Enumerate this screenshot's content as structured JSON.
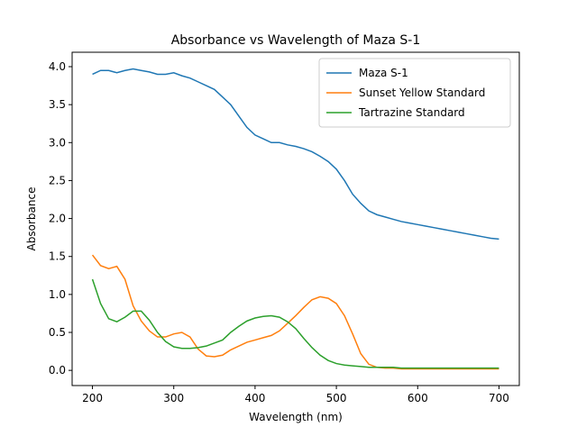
{
  "chart_data": {
    "type": "line",
    "title": "Absorbance vs Wavelength of Maza S-1",
    "xlabel": "Wavelength (nm)",
    "ylabel": "Absorbance",
    "x": [
      200,
      210,
      220,
      230,
      240,
      250,
      260,
      270,
      280,
      290,
      300,
      310,
      320,
      330,
      340,
      350,
      360,
      370,
      380,
      390,
      400,
      410,
      420,
      430,
      440,
      450,
      460,
      470,
      480,
      490,
      500,
      510,
      520,
      530,
      540,
      550,
      560,
      570,
      580,
      590,
      600,
      610,
      620,
      630,
      640,
      650,
      660,
      670,
      680,
      690,
      700
    ],
    "series": [
      {
        "name": "Maza S-1",
        "color": "#1f77b4",
        "values": [
          3.9,
          3.95,
          3.95,
          3.92,
          3.95,
          3.97,
          3.95,
          3.93,
          3.9,
          3.9,
          3.92,
          3.88,
          3.85,
          3.8,
          3.75,
          3.7,
          3.6,
          3.5,
          3.35,
          3.2,
          3.1,
          3.05,
          3.0,
          3.0,
          2.97,
          2.95,
          2.92,
          2.88,
          2.82,
          2.75,
          2.65,
          2.5,
          2.32,
          2.2,
          2.1,
          2.05,
          2.02,
          1.99,
          1.96,
          1.94,
          1.92,
          1.9,
          1.88,
          1.86,
          1.84,
          1.82,
          1.8,
          1.78,
          1.76,
          1.74,
          1.73
        ]
      },
      {
        "name": "Sunset Yellow Standard",
        "color": "#ff7f0e",
        "values": [
          1.52,
          1.38,
          1.34,
          1.37,
          1.2,
          0.85,
          0.65,
          0.52,
          0.44,
          0.44,
          0.48,
          0.5,
          0.44,
          0.28,
          0.19,
          0.18,
          0.2,
          0.27,
          0.32,
          0.37,
          0.4,
          0.43,
          0.46,
          0.52,
          0.62,
          0.72,
          0.83,
          0.93,
          0.97,
          0.95,
          0.88,
          0.72,
          0.48,
          0.22,
          0.08,
          0.04,
          0.03,
          0.03,
          0.02,
          0.02,
          0.02,
          0.02,
          0.02,
          0.02,
          0.02,
          0.02,
          0.02,
          0.02,
          0.02,
          0.02,
          0.02
        ]
      },
      {
        "name": "Tartrazine Standard",
        "color": "#2ca02c",
        "values": [
          1.2,
          0.88,
          0.68,
          0.64,
          0.7,
          0.78,
          0.78,
          0.66,
          0.5,
          0.38,
          0.31,
          0.29,
          0.29,
          0.3,
          0.32,
          0.36,
          0.4,
          0.5,
          0.58,
          0.65,
          0.69,
          0.71,
          0.72,
          0.7,
          0.64,
          0.55,
          0.42,
          0.3,
          0.2,
          0.13,
          0.09,
          0.07,
          0.06,
          0.05,
          0.04,
          0.04,
          0.04,
          0.04,
          0.03,
          0.03,
          0.03,
          0.03,
          0.03,
          0.03,
          0.03,
          0.03,
          0.03,
          0.03,
          0.03,
          0.03,
          0.03
        ]
      }
    ],
    "xlim": [
      175,
      725
    ],
    "xticks": [
      200,
      300,
      400,
      500,
      600,
      700
    ],
    "ylim": [
      -0.2,
      4.19
    ],
    "yticks": [
      {
        "value": 0,
        "label": "0.0"
      },
      {
        "value": 0.5,
        "label": "0.5"
      },
      {
        "value": 1,
        "label": "1.0"
      },
      {
        "value": 1.5,
        "label": "1.5"
      },
      {
        "value": 2,
        "label": "2.0"
      },
      {
        "value": 2.5,
        "label": "2.5"
      },
      {
        "value": 3,
        "label": "3.0"
      },
      {
        "value": 3.5,
        "label": "3.5"
      },
      {
        "value": 4,
        "label": "4.0"
      }
    ],
    "grid": false,
    "legend": "upper right"
  }
}
